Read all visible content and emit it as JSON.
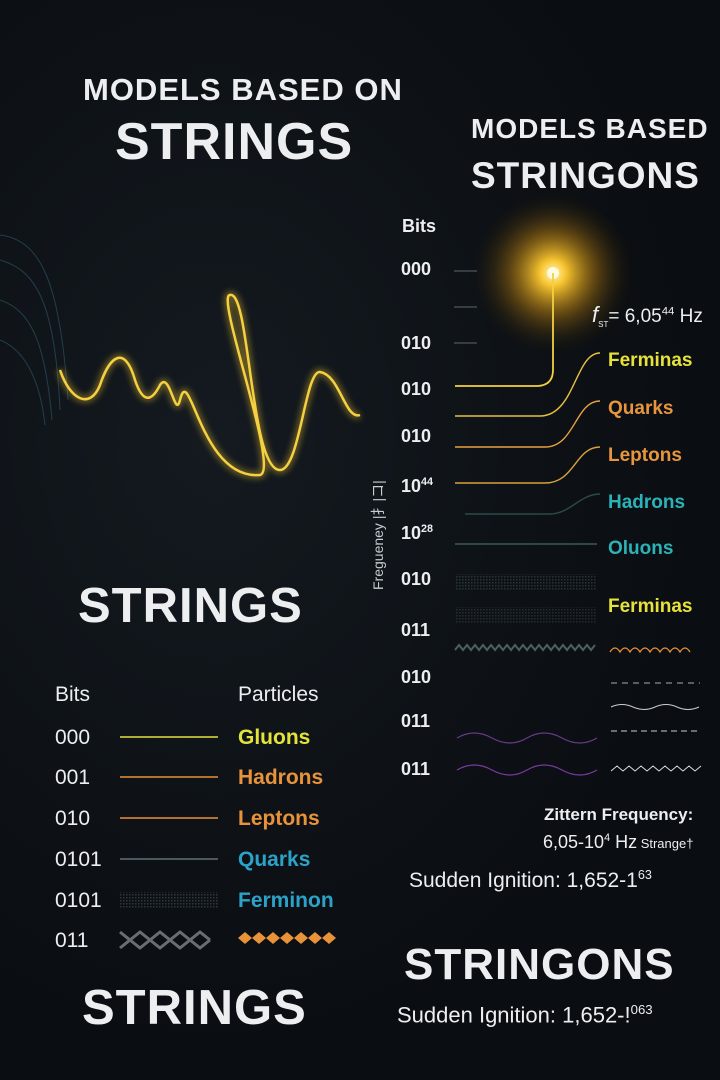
{
  "left": {
    "title_line1": "MODELS BASED ON",
    "title_line2": "STRINGS",
    "mid_title": "STRINGS",
    "bottom_title": "STRINGS",
    "bits_header": "Bits",
    "particles_header": "Particles",
    "rows": [
      {
        "bits": "000",
        "particle": "Gluons",
        "color": "#e3e33a",
        "style": "line"
      },
      {
        "bits": "001",
        "particle": "Hadrons",
        "color": "#e8923a",
        "style": "line"
      },
      {
        "bits": "010",
        "particle": "Leptons",
        "color": "#e8923a",
        "style": "line"
      },
      {
        "bits": "0101",
        "particle": "Quarks",
        "color": "#2ba3c9",
        "style": "thin-line"
      },
      {
        "bits": "0101",
        "particle": "Ferminon",
        "color": "#2ba3c9",
        "style": "texture"
      },
      {
        "bits": "011",
        "particle": "",
        "color": "#e8923a",
        "style": "diamonds"
      }
    ]
  },
  "right": {
    "title_line1": "MODELS BASED",
    "title_line2": "STRINGONS",
    "bits_header": "Bits",
    "axis_label": "Freguеney  |扌|コ|",
    "frequency_label": "f",
    "frequency_sub": "ST",
    "frequency_value": "= 6,05",
    "frequency_exp": "44",
    "frequency_unit": " Hz",
    "bits": [
      "000",
      "010",
      "010",
      "010",
      "10",
      "10",
      "010",
      "011",
      "010",
      "011",
      "011"
    ],
    "bit_exps": {
      "4": "44",
      "5": "28"
    },
    "particles": [
      {
        "name": "Ferminas",
        "color": "#e6e23a"
      },
      {
        "name": "Quarks",
        "color": "#e8963e"
      },
      {
        "name": "Leptons",
        "color": "#e8963e"
      },
      {
        "name": "Hadrons",
        "color": "#2bb3b8"
      },
      {
        "name": "Oluons",
        "color": "#2bb3b8"
      },
      {
        "name": "Ferminas",
        "color": "#e6e23a"
      }
    ],
    "zittern_label": "Zittern Frequency:",
    "zittern_value": "6,05-10",
    "zittern_exp": "4",
    "zittern_unit": " Hz",
    "zittern_suffix": " Strange†",
    "ignition1": "Sudden Ignition: 1,652-1",
    "ignition1_exp": "63",
    "bottom_title": "STRINGONS",
    "ignition2": "Sudden Ignition: 1,652-!",
    "ignition2_exp": "063"
  },
  "colors": {
    "background": "#0b0e12",
    "glow": "#f5b21c",
    "wave": "#f2c530",
    "text": "#eceef0"
  }
}
